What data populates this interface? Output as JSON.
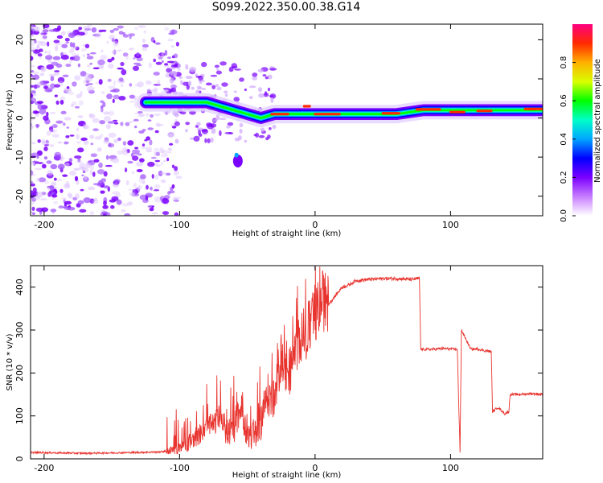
{
  "figure": {
    "title": "S099.2022.350.00.38.G14"
  },
  "chart_data": [
    {
      "type": "heatmap",
      "title": "S099.2022.350.00.38.G14",
      "xlabel": "Height of straight line (km)",
      "ylabel": "Frequency (Hz)",
      "xlim": [
        -210,
        168
      ],
      "ylim": [
        -25,
        24
      ],
      "xticks": [
        -200,
        -100,
        0,
        100
      ],
      "yticks": [
        -20,
        -10,
        0,
        10,
        20
      ],
      "colorbar": {
        "label": "Normalized spectral amplitude",
        "range": [
          0,
          1
        ],
        "ticks": [
          "0.0",
          "0.2",
          "0.4",
          "0.6",
          "0.8"
        ],
        "colors": [
          "#ffffff",
          "#c77dff",
          "#7b00ff",
          "#0000ff",
          "#00a6ff",
          "#00ffc8",
          "#00ff00",
          "#d9ff00",
          "#ffb000",
          "#ff2a00",
          "#ff0080"
        ]
      },
      "ridge": {
        "x": [
          -125,
          -110,
          -100,
          -90,
          -80,
          -70,
          -60,
          -50,
          -40,
          -30,
          -20,
          -10,
          0,
          20,
          40,
          60,
          80,
          100,
          120,
          140,
          168
        ],
        "freq": [
          4,
          4,
          4,
          4,
          4,
          3,
          2,
          1,
          0,
          1,
          1,
          1,
          1,
          1,
          1,
          1,
          2,
          2,
          2,
          2,
          2
        ]
      }
    },
    {
      "type": "line",
      "xlabel": "Height of straight line (km)",
      "ylabel": "SNR (10 * v/v)",
      "xlim": [
        -210,
        168
      ],
      "ylim": [
        0,
        450
      ],
      "xticks": [
        -200,
        -100,
        0,
        100
      ],
      "yticks": [
        0,
        100,
        200,
        300,
        400
      ],
      "color": "#e8342f",
      "series": [
        {
          "x": [
            -210,
            -190,
            -170,
            -150,
            -130,
            -115,
            -105,
            -100,
            -95,
            -90,
            -85,
            -80,
            -75,
            -70,
            -65,
            -60,
            -55,
            -50,
            -45,
            -40,
            -35,
            -30,
            -25,
            -20,
            -15,
            -10,
            -5,
            0,
            5,
            10,
            15,
            20,
            25,
            30,
            40,
            50,
            60,
            70,
            77,
            78,
            85,
            95,
            105,
            106,
            107,
            108,
            115,
            120,
            125,
            130,
            131,
            135,
            140,
            143,
            144,
            150,
            160,
            168
          ],
          "values": [
            15,
            14,
            13,
            14,
            15,
            16,
            20,
            25,
            30,
            45,
            55,
            75,
            80,
            100,
            60,
            70,
            120,
            65,
            50,
            90,
            150,
            130,
            240,
            190,
            250,
            290,
            300,
            330,
            370,
            360,
            380,
            400,
            405,
            415,
            418,
            420,
            420,
            418,
            420,
            255,
            255,
            257,
            255,
            130,
            15,
            300,
            255,
            256,
            252,
            250,
            110,
            120,
            105,
            110,
            150,
            150,
            152,
            150
          ]
        }
      ]
    }
  ]
}
